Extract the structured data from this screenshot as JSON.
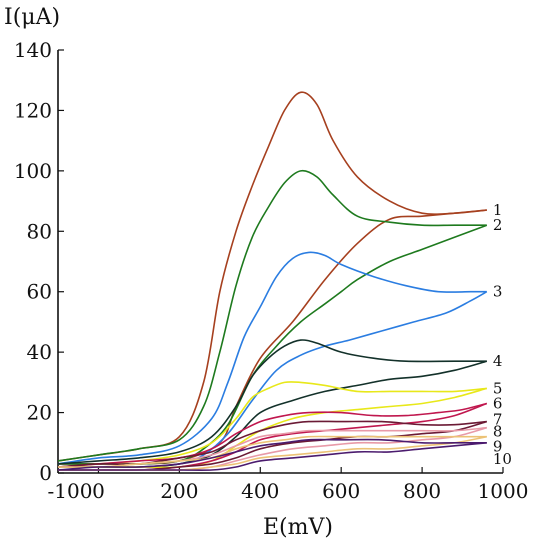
{
  "chart_data": {
    "type": "line",
    "title": "",
    "xlabel": "E(mV)",
    "ylabel": "I(μA)",
    "xlim": [
      -100,
      1000
    ],
    "ylim": [
      0,
      140
    ],
    "x_ticks": [
      -100,
      0,
      200,
      400,
      600,
      800,
      1000
    ],
    "y_ticks": [
      0,
      20,
      40,
      60,
      80,
      100,
      120,
      140
    ],
    "grid": false,
    "legend": "curve labels at right end",
    "series": [
      {
        "name": "1",
        "color": "#a6401f",
        "forward": [
          [
            -100,
            4
          ],
          [
            0,
            6
          ],
          [
            100,
            8
          ],
          [
            200,
            12
          ],
          [
            260,
            30
          ],
          [
            300,
            60
          ],
          [
            340,
            80
          ],
          [
            380,
            95
          ],
          [
            420,
            108
          ],
          [
            460,
            120
          ],
          [
            500,
            126
          ],
          [
            540,
            122
          ],
          [
            580,
            110
          ],
          [
            640,
            98
          ],
          [
            720,
            90
          ],
          [
            800,
            86
          ],
          [
            880,
            86
          ],
          [
            960,
            87
          ]
        ],
        "reverse": [
          [
            960,
            87
          ],
          [
            880,
            86
          ],
          [
            800,
            85
          ],
          [
            720,
            84
          ],
          [
            640,
            76
          ],
          [
            560,
            64
          ],
          [
            480,
            50
          ],
          [
            400,
            38
          ],
          [
            340,
            22
          ],
          [
            300,
            10
          ],
          [
            200,
            4
          ],
          [
            100,
            3
          ],
          [
            0,
            3
          ],
          [
            -100,
            3
          ]
        ]
      },
      {
        "name": "2",
        "color": "#1e7a1e",
        "forward": [
          [
            -100,
            4
          ],
          [
            0,
            6
          ],
          [
            100,
            8
          ],
          [
            200,
            11
          ],
          [
            260,
            22
          ],
          [
            300,
            40
          ],
          [
            340,
            62
          ],
          [
            380,
            78
          ],
          [
            420,
            88
          ],
          [
            460,
            96
          ],
          [
            500,
            100
          ],
          [
            540,
            98
          ],
          [
            580,
            92
          ],
          [
            640,
            85
          ],
          [
            720,
            83
          ],
          [
            800,
            82
          ],
          [
            880,
            82
          ],
          [
            960,
            82
          ]
        ],
        "reverse": [
          [
            960,
            82
          ],
          [
            880,
            78
          ],
          [
            800,
            74
          ],
          [
            720,
            70
          ],
          [
            640,
            64
          ],
          [
            600,
            60
          ],
          [
            560,
            56
          ],
          [
            500,
            50
          ],
          [
            440,
            42
          ],
          [
            380,
            32
          ],
          [
            320,
            16
          ],
          [
            260,
            8
          ],
          [
            200,
            4
          ],
          [
            100,
            3
          ],
          [
            0,
            3
          ],
          [
            -100,
            3
          ]
        ]
      },
      {
        "name": "3",
        "color": "#2b7de1",
        "forward": [
          [
            -100,
            3
          ],
          [
            0,
            5
          ],
          [
            100,
            6
          ],
          [
            200,
            9
          ],
          [
            280,
            18
          ],
          [
            320,
            30
          ],
          [
            360,
            45
          ],
          [
            400,
            55
          ],
          [
            440,
            65
          ],
          [
            480,
            71
          ],
          [
            520,
            73
          ],
          [
            560,
            72
          ],
          [
            600,
            69
          ],
          [
            680,
            65
          ],
          [
            760,
            62
          ],
          [
            840,
            60
          ],
          [
            920,
            60
          ],
          [
            960,
            60
          ]
        ],
        "reverse": [
          [
            960,
            60
          ],
          [
            920,
            57
          ],
          [
            860,
            53
          ],
          [
            780,
            50
          ],
          [
            700,
            47
          ],
          [
            620,
            44
          ],
          [
            560,
            42
          ],
          [
            500,
            39
          ],
          [
            440,
            34
          ],
          [
            380,
            24
          ],
          [
            320,
            13
          ],
          [
            260,
            6
          ],
          [
            200,
            3
          ],
          [
            100,
            2
          ],
          [
            0,
            2
          ],
          [
            -100,
            2
          ]
        ]
      },
      {
        "name": "4",
        "color": "#13312a",
        "forward": [
          [
            -100,
            3
          ],
          [
            0,
            4
          ],
          [
            100,
            5
          ],
          [
            200,
            7
          ],
          [
            280,
            12
          ],
          [
            340,
            22
          ],
          [
            380,
            32
          ],
          [
            420,
            38
          ],
          [
            460,
            42
          ],
          [
            500,
            44
          ],
          [
            540,
            43
          ],
          [
            600,
            40
          ],
          [
            680,
            38
          ],
          [
            760,
            37
          ],
          [
            880,
            37
          ],
          [
            960,
            37
          ]
        ],
        "reverse": [
          [
            960,
            37
          ],
          [
            880,
            34
          ],
          [
            800,
            32
          ],
          [
            720,
            31
          ],
          [
            640,
            29
          ],
          [
            560,
            27
          ],
          [
            480,
            24
          ],
          [
            400,
            20
          ],
          [
            340,
            12
          ],
          [
            280,
            6
          ],
          [
            200,
            3
          ],
          [
            100,
            2
          ],
          [
            0,
            2
          ],
          [
            -100,
            2
          ]
        ]
      },
      {
        "name": "5",
        "color": "#e8e81a",
        "forward": [
          [
            -100,
            2
          ],
          [
            0,
            3
          ],
          [
            100,
            4
          ],
          [
            200,
            6
          ],
          [
            280,
            10
          ],
          [
            340,
            18
          ],
          [
            380,
            25
          ],
          [
            420,
            28
          ],
          [
            460,
            30
          ],
          [
            500,
            30
          ],
          [
            560,
            29
          ],
          [
            640,
            27
          ],
          [
            720,
            27
          ],
          [
            800,
            27
          ],
          [
            880,
            27
          ],
          [
            960,
            28
          ]
        ],
        "reverse": [
          [
            960,
            28
          ],
          [
            880,
            25
          ],
          [
            800,
            23
          ],
          [
            720,
            22
          ],
          [
            640,
            21
          ],
          [
            560,
            20
          ],
          [
            480,
            18
          ],
          [
            400,
            14
          ],
          [
            340,
            9
          ],
          [
            280,
            4
          ],
          [
            200,
            2
          ],
          [
            100,
            2
          ],
          [
            0,
            2
          ],
          [
            -100,
            2
          ]
        ]
      },
      {
        "name": "6",
        "color": "#c0174e",
        "forward": [
          [
            -100,
            2
          ],
          [
            0,
            3
          ],
          [
            100,
            4
          ],
          [
            200,
            5
          ],
          [
            280,
            8
          ],
          [
            340,
            13
          ],
          [
            400,
            17
          ],
          [
            460,
            19
          ],
          [
            520,
            20
          ],
          [
            600,
            20
          ],
          [
            680,
            19
          ],
          [
            760,
            19
          ],
          [
            840,
            20
          ],
          [
            900,
            21
          ],
          [
            960,
            23
          ]
        ],
        "reverse": [
          [
            960,
            23
          ],
          [
            880,
            19
          ],
          [
            800,
            17
          ],
          [
            720,
            16
          ],
          [
            640,
            15
          ],
          [
            560,
            14
          ],
          [
            480,
            13
          ],
          [
            400,
            11
          ],
          [
            340,
            7
          ],
          [
            280,
            4
          ],
          [
            200,
            2
          ],
          [
            100,
            1
          ],
          [
            0,
            1
          ],
          [
            -100,
            1
          ]
        ]
      },
      {
        "name": "7",
        "color": "#6b1a35",
        "forward": [
          [
            -100,
            2
          ],
          [
            0,
            3
          ],
          [
            100,
            3
          ],
          [
            200,
            5
          ],
          [
            280,
            7
          ],
          [
            340,
            11
          ],
          [
            400,
            14
          ],
          [
            460,
            16
          ],
          [
            520,
            17
          ],
          [
            600,
            17
          ],
          [
            700,
            17
          ],
          [
            800,
            16
          ],
          [
            880,
            16
          ],
          [
            960,
            17
          ]
        ],
        "reverse": [
          [
            960,
            17
          ],
          [
            880,
            14
          ],
          [
            800,
            13
          ],
          [
            720,
            12
          ],
          [
            640,
            12
          ],
          [
            560,
            11
          ],
          [
            480,
            10
          ],
          [
            400,
            8
          ],
          [
            340,
            5
          ],
          [
            280,
            3
          ],
          [
            200,
            2
          ],
          [
            100,
            1
          ],
          [
            0,
            1
          ],
          [
            -100,
            1
          ]
        ]
      },
      {
        "name": "8",
        "color": "#e89aa8",
        "forward": [
          [
            -100,
            2
          ],
          [
            0,
            2
          ],
          [
            100,
            3
          ],
          [
            200,
            4
          ],
          [
            280,
            6
          ],
          [
            340,
            9
          ],
          [
            400,
            12
          ],
          [
            460,
            13
          ],
          [
            520,
            14
          ],
          [
            600,
            14
          ],
          [
            700,
            14
          ],
          [
            800,
            14
          ],
          [
            880,
            14
          ],
          [
            960,
            15
          ]
        ],
        "reverse": [
          [
            960,
            15
          ],
          [
            880,
            12
          ],
          [
            800,
            11
          ],
          [
            720,
            10
          ],
          [
            640,
            10
          ],
          [
            560,
            9
          ],
          [
            480,
            8
          ],
          [
            400,
            6
          ],
          [
            340,
            4
          ],
          [
            280,
            2
          ],
          [
            200,
            1
          ],
          [
            100,
            1
          ],
          [
            0,
            1
          ],
          [
            -100,
            1
          ]
        ]
      },
      {
        "name": "9",
        "color": "#ecc276",
        "forward": [
          [
            -100,
            2
          ],
          [
            0,
            2
          ],
          [
            100,
            3
          ],
          [
            200,
            4
          ],
          [
            280,
            5
          ],
          [
            340,
            8
          ],
          [
            400,
            10
          ],
          [
            460,
            11
          ],
          [
            520,
            12
          ],
          [
            600,
            12
          ],
          [
            700,
            12
          ],
          [
            800,
            12
          ],
          [
            880,
            12
          ],
          [
            960,
            12
          ]
        ],
        "reverse": [
          [
            960,
            12
          ],
          [
            880,
            10
          ],
          [
            800,
            9
          ],
          [
            720,
            8
          ],
          [
            640,
            8
          ],
          [
            560,
            7
          ],
          [
            480,
            6
          ],
          [
            400,
            5
          ],
          [
            340,
            3
          ],
          [
            280,
            2
          ],
          [
            200,
            1
          ],
          [
            100,
            1
          ],
          [
            0,
            1
          ],
          [
            -100,
            1
          ]
        ]
      },
      {
        "name": "10",
        "color": "#4b1b6e",
        "forward": [
          [
            -100,
            1
          ],
          [
            0,
            2
          ],
          [
            100,
            2
          ],
          [
            200,
            3
          ],
          [
            280,
            5
          ],
          [
            340,
            7
          ],
          [
            400,
            9
          ],
          [
            460,
            10
          ],
          [
            520,
            11
          ],
          [
            600,
            11
          ],
          [
            700,
            11
          ],
          [
            800,
            10
          ],
          [
            880,
            10
          ],
          [
            960,
            10
          ]
        ],
        "reverse": [
          [
            960,
            10
          ],
          [
            880,
            9
          ],
          [
            800,
            8
          ],
          [
            720,
            7
          ],
          [
            640,
            7
          ],
          [
            560,
            6
          ],
          [
            480,
            5
          ],
          [
            400,
            4
          ],
          [
            340,
            2
          ],
          [
            280,
            1
          ],
          [
            200,
            1
          ],
          [
            100,
            1
          ],
          [
            0,
            1
          ],
          [
            -100,
            1
          ]
        ]
      }
    ]
  }
}
